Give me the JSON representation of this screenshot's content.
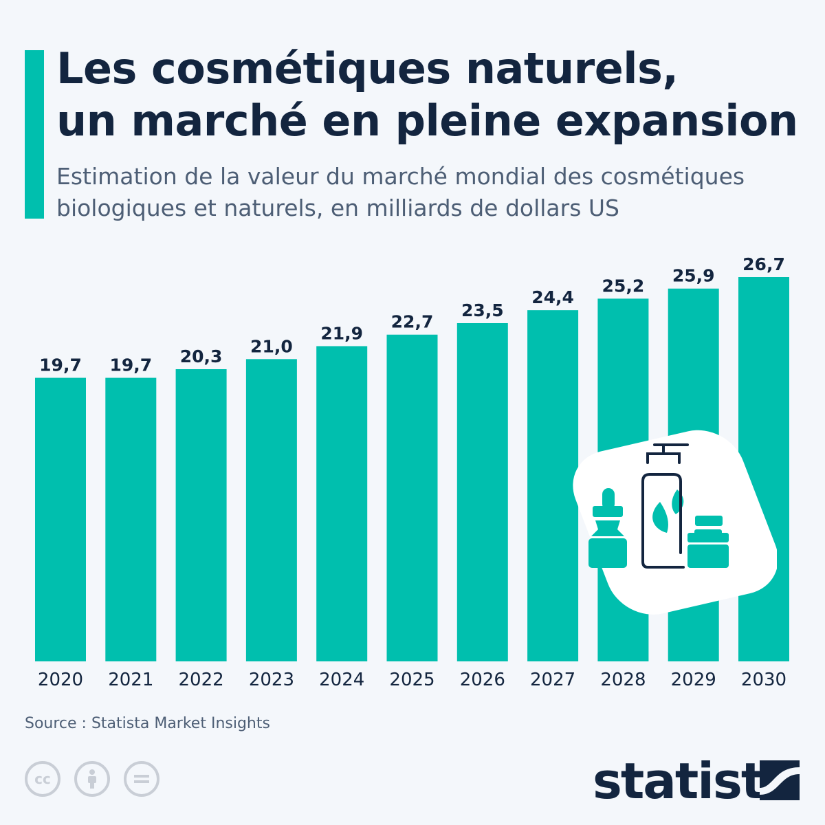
{
  "header": {
    "title_line1": "Les cosmétiques naturels,",
    "title_line2": "un marché en pleine expansion",
    "subtitle_line1": "Estimation de la valeur du marché mondial des cosmétiques",
    "subtitle_line2": "biologiques et naturels, en milliards de dollars US"
  },
  "chart_data": {
    "type": "bar",
    "title": "Les cosmétiques naturels, un marché en pleine expansion",
    "subtitle": "Estimation de la valeur du marché mondial des cosmétiques biologiques et naturels, en milliards de dollars US",
    "categories": [
      "2020",
      "2021",
      "2022",
      "2023",
      "2024",
      "2025",
      "2026",
      "2027",
      "2028",
      "2029",
      "2030"
    ],
    "values": [
      19.7,
      19.7,
      20.3,
      21.0,
      21.9,
      22.7,
      23.5,
      24.4,
      25.2,
      25.9,
      26.7
    ],
    "labels": [
      "19,7",
      "19,7",
      "20,3",
      "21,0",
      "21,9",
      "22,7",
      "23,5",
      "24,4",
      "25,2",
      "25,9",
      "26,7"
    ],
    "ylim": [
      0,
      26.7
    ],
    "grid": false,
    "bar_color": "#00bfae",
    "label_color": "#13253f"
  },
  "footer": {
    "source": "Source : Statista Market Insights",
    "logo": "statista",
    "license_icons": [
      "cc-icon",
      "attribution-icon",
      "no-derivatives-icon"
    ]
  },
  "icon": "cosmetic-bottles-leaf-icon"
}
